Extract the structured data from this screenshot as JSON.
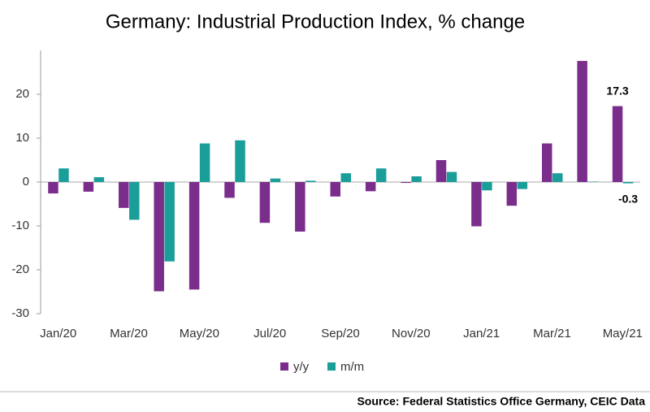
{
  "chart_data": {
    "type": "bar",
    "title": "Germany: Industrial Production Index, % change",
    "source": "Source: Federal Statistics Office Germany, CEIC Data",
    "categories": [
      "Jan/20",
      null,
      "Mar/20",
      null,
      "May/20",
      null,
      "Jul/20",
      null,
      "Sep/20",
      null,
      "Nov/20",
      null,
      "Jan/21",
      null,
      "Mar/21",
      null,
      "May/21"
    ],
    "series": [
      {
        "name": "y/y",
        "color": "#7b2d8b",
        "values": [
          -2.6,
          -2.2,
          -5.9,
          -24.9,
          -24.5,
          -3.6,
          -9.3,
          -11.3,
          -3.3,
          -2.1,
          -0.2,
          5.0,
          -10.1,
          -5.4,
          8.8,
          27.6,
          17.3
        ],
        "value_labels": [
          null,
          null,
          null,
          null,
          null,
          null,
          null,
          null,
          null,
          null,
          null,
          null,
          null,
          null,
          null,
          null,
          "17.3"
        ]
      },
      {
        "name": "m/m",
        "color": "#1a9e9a",
        "values": [
          3.1,
          1.1,
          -8.6,
          -18.1,
          8.8,
          9.5,
          0.8,
          0.3,
          2.0,
          3.1,
          1.3,
          2.3,
          -1.9,
          -1.6,
          2.0,
          0.1,
          -0.3
        ],
        "value_labels": [
          null,
          null,
          null,
          null,
          null,
          null,
          null,
          null,
          null,
          null,
          null,
          null,
          null,
          null,
          null,
          null,
          "-0.3"
        ]
      }
    ],
    "ylim": [
      -30,
      30
    ],
    "yticks": [
      -30,
      -20,
      -10,
      0,
      10,
      20
    ]
  }
}
